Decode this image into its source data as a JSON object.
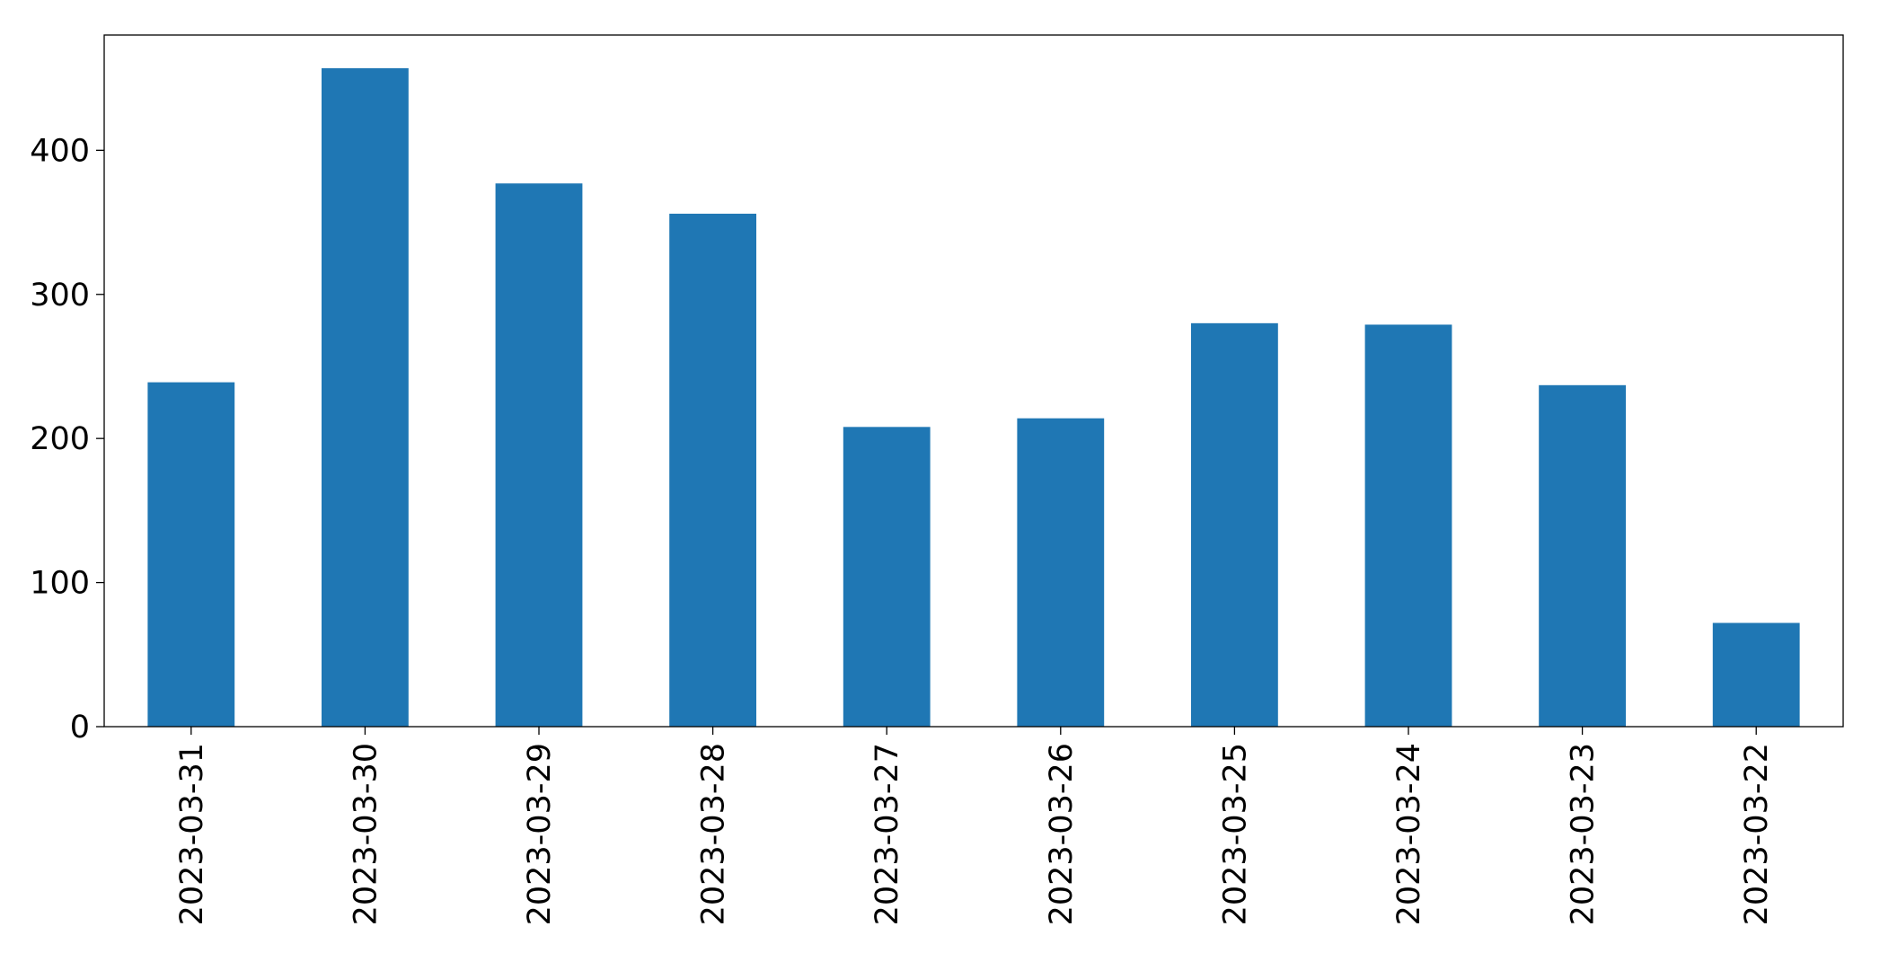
{
  "chart_data": {
    "type": "bar",
    "categories": [
      "2023-03-31",
      "2023-03-30",
      "2023-03-29",
      "2023-03-28",
      "2023-03-27",
      "2023-03-26",
      "2023-03-25",
      "2023-03-24",
      "2023-03-23",
      "2023-03-22"
    ],
    "values": [
      239,
      457,
      377,
      356,
      208,
      214,
      280,
      279,
      237,
      72
    ],
    "color": "#1f77b4",
    "ylim": [
      0,
      480
    ],
    "yticks": [
      0,
      100,
      200,
      300,
      400
    ],
    "grid": false
  }
}
